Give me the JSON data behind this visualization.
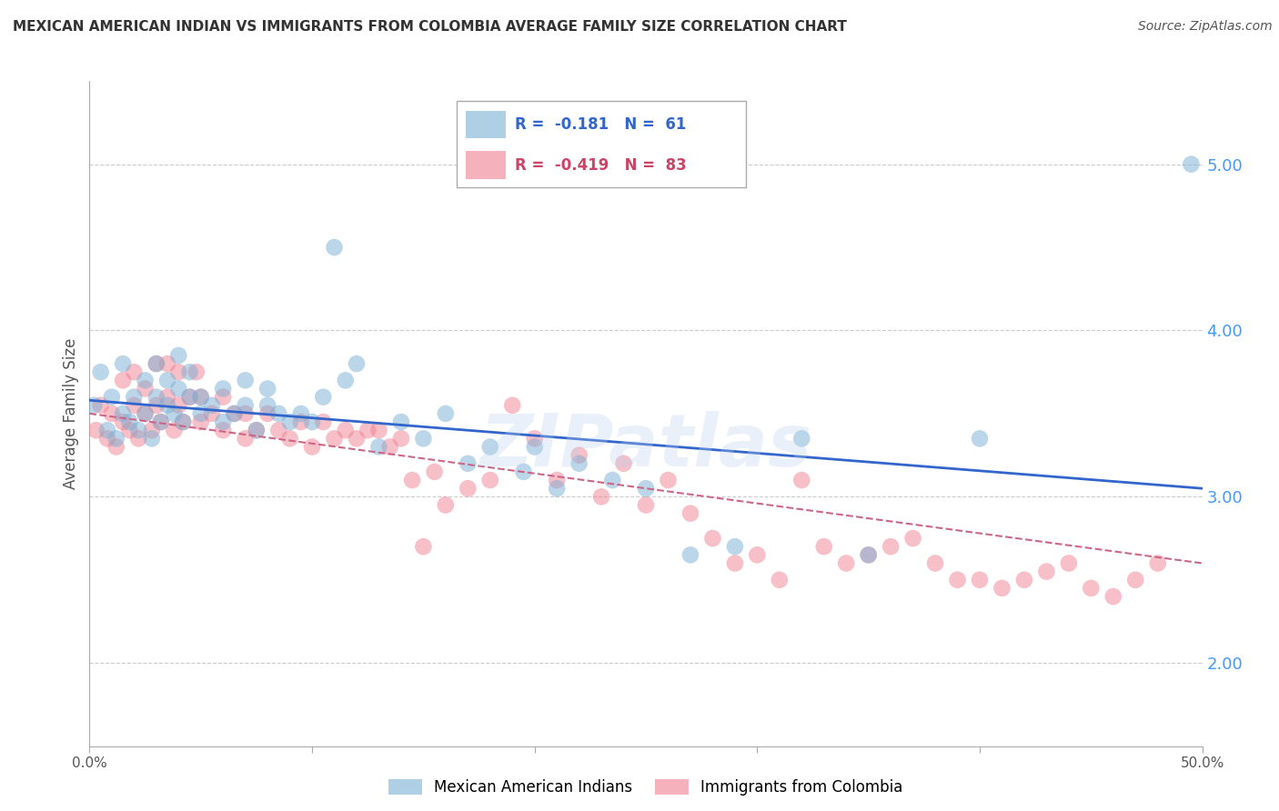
{
  "title": "MEXICAN AMERICAN INDIAN VS IMMIGRANTS FROM COLOMBIA AVERAGE FAMILY SIZE CORRELATION CHART",
  "source": "Source: ZipAtlas.com",
  "ylabel": "Average Family Size",
  "right_yticks": [
    2.0,
    3.0,
    4.0,
    5.0
  ],
  "watermark": "ZIPatlas",
  "legend_r": [
    {
      "label": "R =  -0.181   N =  61",
      "color": "#a8c4e0",
      "text_color": "#3366cc"
    },
    {
      "label": "R =  -0.419   N =  83",
      "color": "#f4a0b0",
      "text_color": "#cc4466"
    }
  ],
  "legend_labels": [
    "Mexican American Indians",
    "Immigrants from Colombia"
  ],
  "blue_color": "#7bafd4",
  "pink_color": "#f08090",
  "blue_line_color": "#3366cc",
  "pink_line_color": "#cc6688",
  "blue_scatter": {
    "x": [
      0.2,
      0.5,
      0.8,
      1.0,
      1.2,
      1.5,
      1.5,
      1.8,
      2.0,
      2.2,
      2.5,
      2.5,
      2.8,
      3.0,
      3.0,
      3.2,
      3.5,
      3.5,
      3.8,
      4.0,
      4.0,
      4.2,
      4.5,
      4.5,
      5.0,
      5.0,
      5.5,
      6.0,
      6.0,
      6.5,
      7.0,
      7.0,
      7.5,
      8.0,
      8.0,
      8.5,
      9.0,
      9.5,
      10.0,
      10.5,
      11.0,
      11.5,
      12.0,
      13.0,
      14.0,
      15.0,
      16.0,
      17.0,
      18.0,
      19.5,
      20.0,
      21.0,
      22.0,
      23.5,
      25.0,
      27.0,
      29.0,
      32.0,
      35.0,
      40.0,
      49.5
    ],
    "y": [
      3.55,
      3.75,
      3.4,
      3.6,
      3.35,
      3.5,
      3.8,
      3.45,
      3.6,
      3.4,
      3.5,
      3.7,
      3.35,
      3.6,
      3.8,
      3.45,
      3.55,
      3.7,
      3.5,
      3.65,
      3.85,
      3.45,
      3.6,
      3.75,
      3.5,
      3.6,
      3.55,
      3.45,
      3.65,
      3.5,
      3.55,
      3.7,
      3.4,
      3.55,
      3.65,
      3.5,
      3.45,
      3.5,
      3.45,
      3.6,
      4.5,
      3.7,
      3.8,
      3.3,
      3.45,
      3.35,
      3.5,
      3.2,
      3.3,
      3.15,
      3.3,
      3.05,
      3.2,
      3.1,
      3.05,
      2.65,
      2.7,
      3.35,
      2.65,
      3.35,
      5.0
    ]
  },
  "pink_scatter": {
    "x": [
      0.3,
      0.5,
      0.8,
      1.0,
      1.2,
      1.5,
      1.5,
      1.8,
      2.0,
      2.0,
      2.2,
      2.5,
      2.5,
      2.8,
      3.0,
      3.0,
      3.2,
      3.5,
      3.5,
      3.8,
      4.0,
      4.0,
      4.2,
      4.5,
      4.8,
      5.0,
      5.0,
      5.5,
      6.0,
      6.0,
      6.5,
      7.0,
      7.0,
      7.5,
      8.0,
      8.5,
      9.0,
      9.5,
      10.0,
      10.5,
      11.0,
      11.5,
      12.0,
      12.5,
      13.0,
      13.5,
      14.0,
      14.5,
      15.0,
      15.5,
      16.0,
      17.0,
      18.0,
      19.0,
      20.0,
      21.0,
      22.0,
      23.0,
      24.0,
      25.0,
      26.0,
      27.0,
      28.0,
      29.0,
      30.0,
      31.0,
      32.0,
      33.0,
      34.0,
      35.0,
      36.0,
      37.0,
      38.0,
      39.0,
      40.0,
      41.0,
      42.0,
      43.0,
      44.0,
      45.0,
      46.0,
      47.0,
      48.0
    ],
    "y": [
      3.4,
      3.55,
      3.35,
      3.5,
      3.3,
      3.45,
      3.7,
      3.4,
      3.55,
      3.75,
      3.35,
      3.5,
      3.65,
      3.4,
      3.55,
      3.8,
      3.45,
      3.6,
      3.8,
      3.4,
      3.55,
      3.75,
      3.45,
      3.6,
      3.75,
      3.45,
      3.6,
      3.5,
      3.4,
      3.6,
      3.5,
      3.35,
      3.5,
      3.4,
      3.5,
      3.4,
      3.35,
      3.45,
      3.3,
      3.45,
      3.35,
      3.4,
      3.35,
      3.4,
      3.4,
      3.3,
      3.35,
      3.1,
      2.7,
      3.15,
      2.95,
      3.05,
      3.1,
      3.55,
      3.35,
      3.1,
      3.25,
      3.0,
      3.2,
      2.95,
      3.1,
      2.9,
      2.75,
      2.6,
      2.65,
      2.5,
      3.1,
      2.7,
      2.6,
      2.65,
      2.7,
      2.75,
      2.6,
      2.5,
      2.5,
      2.45,
      2.5,
      2.55,
      2.6,
      2.45,
      2.4,
      2.5,
      2.6
    ]
  },
  "blue_line": {
    "x0": 0,
    "x1": 50,
    "y0": 3.58,
    "y1": 3.05
  },
  "pink_line": {
    "x0": 0,
    "x1": 50,
    "y0": 3.5,
    "y1": 2.6
  },
  "xlim": [
    0,
    50
  ],
  "ylim": [
    1.5,
    5.5
  ],
  "grid_color": "#cccccc",
  "right_axis_color": "#4499ff",
  "background": "#ffffff"
}
